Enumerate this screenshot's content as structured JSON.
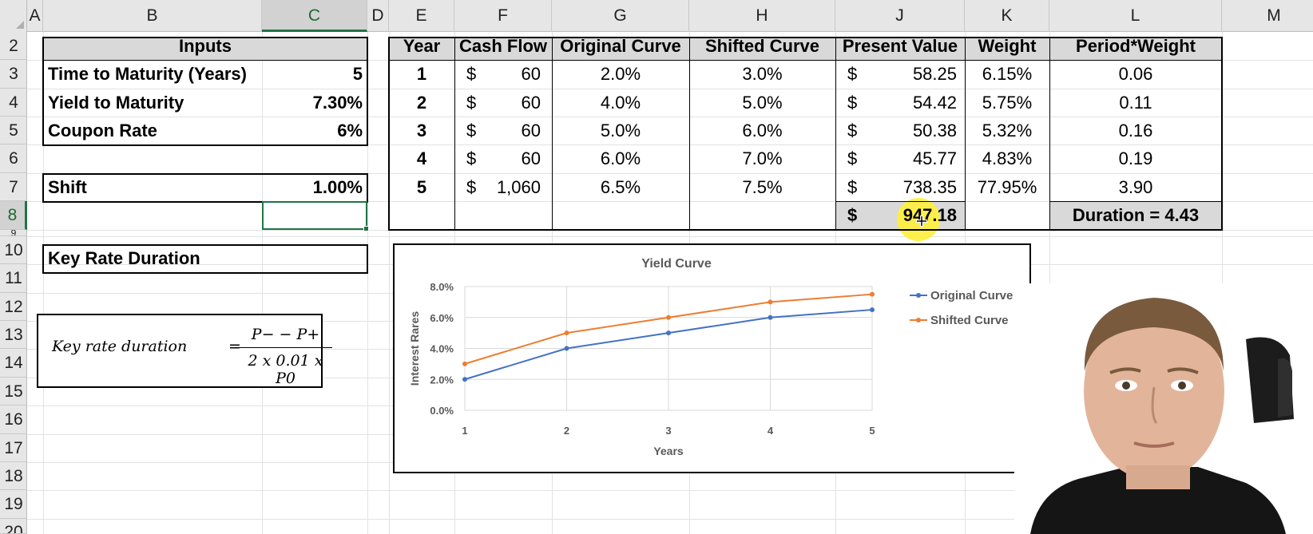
{
  "columns": [
    "A",
    "B",
    "C",
    "D",
    "E",
    "F",
    "G",
    "H",
    "J",
    "K",
    "L",
    "M"
  ],
  "rows": [
    "2",
    "3",
    "4",
    "5",
    "6",
    "7",
    "8",
    "9",
    "10",
    "11",
    "12",
    "13",
    "14",
    "15",
    "16",
    "17",
    "18",
    "19",
    "20"
  ],
  "inputs": {
    "header": "Inputs",
    "ttm_label": "Time to Maturity (Years)",
    "ttm_value": "5",
    "ytm_label": "Yield to Maturity",
    "ytm_value": "7.30%",
    "coupon_label": "Coupon Rate",
    "coupon_value": "6%",
    "shift_label": "Shift",
    "shift_value": "1.00%",
    "krd_label": "Key Rate Duration"
  },
  "table": {
    "headers": [
      "Year",
      "Cash Flow",
      "Original Curve",
      "Shifted Curve",
      "Present Value",
      "Weight",
      "Period*Weight"
    ],
    "rows": [
      {
        "year": "1",
        "cur": "$",
        "cf": "60",
        "orig": "2.0%",
        "shift": "3.0%",
        "pvcur": "$",
        "pv": "58.25",
        "weight": "6.15%",
        "pw": "0.06"
      },
      {
        "year": "2",
        "cur": "$",
        "cf": "60",
        "orig": "4.0%",
        "shift": "5.0%",
        "pvcur": "$",
        "pv": "54.42",
        "weight": "5.75%",
        "pw": "0.11"
      },
      {
        "year": "3",
        "cur": "$",
        "cf": "60",
        "orig": "5.0%",
        "shift": "6.0%",
        "pvcur": "$",
        "pv": "50.38",
        "weight": "5.32%",
        "pw": "0.16"
      },
      {
        "year": "4",
        "cur": "$",
        "cf": "60",
        "orig": "6.0%",
        "shift": "7.0%",
        "pvcur": "$",
        "pv": "45.77",
        "weight": "4.83%",
        "pw": "0.19"
      },
      {
        "year": "5",
        "cur": "$",
        "cf": "1,060",
        "orig": "6.5%",
        "shift": "7.5%",
        "pvcur": "$",
        "pv": "738.35",
        "weight": "77.95%",
        "pw": "3.90"
      }
    ],
    "total_cur": "$",
    "total_pv": "947.18",
    "duration": "Duration = 4.43"
  },
  "formula": {
    "lhs": "Key rate duration",
    "eq": "=",
    "numerator": "P− − P+",
    "denominator": "2 x 0.01 x P0"
  },
  "chart_data": {
    "type": "line",
    "title": "Yield Curve",
    "xlabel": "Years",
    "ylabel": "Interest Rares",
    "categories": [
      "1",
      "2",
      "3",
      "4",
      "5"
    ],
    "y_ticks": [
      "0.0%",
      "2.0%",
      "4.0%",
      "6.0%",
      "8.0%"
    ],
    "ylim": [
      0,
      8
    ],
    "grid": true,
    "legend": "right",
    "series": [
      {
        "name": "Original Curve",
        "values": [
          2.0,
          4.0,
          5.0,
          6.0,
          6.5
        ],
        "color": "#4472c4"
      },
      {
        "name": "Shifted Curve",
        "values": [
          3.0,
          5.0,
          6.0,
          7.0,
          7.5
        ],
        "color": "#ed7d31"
      }
    ]
  },
  "colors": {
    "selection": "#217346",
    "cursor_highlight": "#ffef3a",
    "header_fill": "#d9d9d9"
  },
  "overlay": {
    "webcam": "presenter-webcam"
  }
}
